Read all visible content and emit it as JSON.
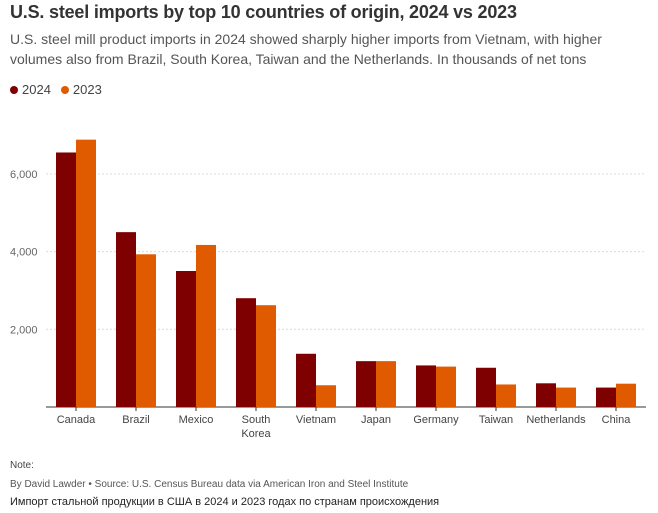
{
  "header": {
    "title": "U.S. steel imports by top 10 countries of origin, 2024 vs 2023",
    "subtitle": "U.S. steel mill product imports in 2024 showed sharply higher imports from Vietnam, with higher volumes also from Brazil, South Korea, Taiwan and the Netherlands. In thousands of net tons"
  },
  "legend": [
    {
      "label": "2024",
      "color": "#7f0000"
    },
    {
      "label": "2023",
      "color": "#e05a00"
    }
  ],
  "footer": {
    "note": "Note:",
    "source": "By David Lawder • Source: U.S. Census Bureau data via American Iron and Steel Institute",
    "caption": "Импорт стальной продукции в США в 2024 и 2023 годах по странам происхождения"
  },
  "chart_data": {
    "type": "bar",
    "title": "U.S. steel imports by top 10 countries of origin, 2024 vs 2023",
    "xlabel": "",
    "ylabel": "",
    "ylim": [
      0,
      7000
    ],
    "yticks": [
      2000,
      4000,
      6000
    ],
    "ytick_labels": [
      "2,000",
      "4,000",
      "6,000"
    ],
    "grid": true,
    "legend_position": "top-left",
    "categories": [
      "Canada",
      "Brazil",
      "Mexico",
      "South Korea",
      "Vietnam",
      "Japan",
      "Germany",
      "Taiwan",
      "Netherlands",
      "China"
    ],
    "category_lines": [
      [
        "Canada"
      ],
      [
        "Brazil"
      ],
      [
        "Mexico"
      ],
      [
        "South",
        "Korea"
      ],
      [
        "Vietnam"
      ],
      [
        "Japan"
      ],
      [
        "Germany"
      ],
      [
        "Taiwan"
      ],
      [
        "Netherlands"
      ],
      [
        "China"
      ]
    ],
    "series": [
      {
        "name": "2024",
        "color": "#7f0000",
        "values": [
          6550,
          4500,
          3500,
          2800,
          1370,
          1180,
          1070,
          1010,
          610,
          500
        ]
      },
      {
        "name": "2023",
        "color": "#e05a00",
        "values": [
          6880,
          3930,
          4170,
          2620,
          560,
          1180,
          1040,
          580,
          500,
          600
        ]
      }
    ]
  }
}
